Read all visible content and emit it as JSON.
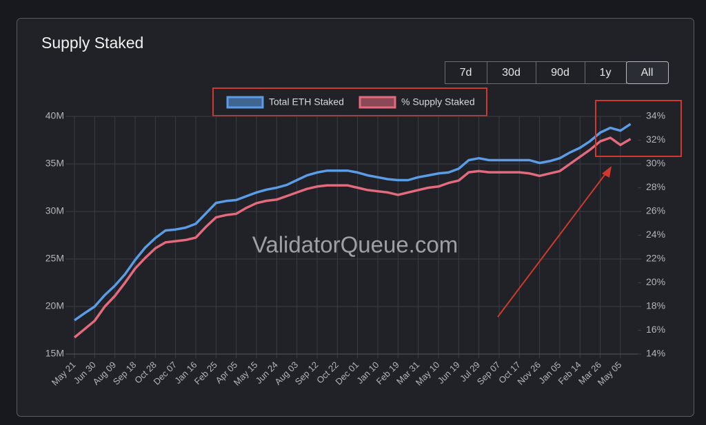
{
  "chart_data": {
    "type": "line",
    "title": "Supply Staked",
    "watermark": "ValidatorQueue.com",
    "categories": [
      "May 21",
      null,
      "Jun 30",
      null,
      "Aug 09",
      null,
      "Sep 18",
      null,
      "Oct 28",
      null,
      "Dec 07",
      null,
      "Jan 16",
      null,
      "Feb 25",
      null,
      "Apr 05",
      null,
      "May 15",
      null,
      "Jun 24",
      null,
      "Aug 03",
      null,
      "Sep 12",
      null,
      "Oct 22",
      null,
      "Dec 01",
      null,
      "Jan 10",
      null,
      "Feb 19",
      null,
      "Mar 31",
      null,
      "May 10",
      null,
      "Jun 19",
      null,
      "Jul 29",
      null,
      "Sep 07",
      null,
      "Oct 17",
      null,
      "Nov 26",
      null,
      "Jan 05",
      null,
      "Feb 14",
      null,
      "Mar 26",
      null,
      "May 05",
      null
    ],
    "series": [
      {
        "name": "Total ETH Staked",
        "color": "#5b9ce6",
        "axis": "y",
        "values": [
          18550000,
          19300000,
          20000000,
          21200000,
          22200000,
          23400000,
          24900000,
          26200000,
          27200000,
          28000000,
          28100000,
          28300000,
          28700000,
          29800000,
          30900000,
          31100000,
          31200000,
          31600000,
          32000000,
          32300000,
          32500000,
          32800000,
          33300000,
          33800000,
          34100000,
          34300000,
          34300000,
          34300000,
          34100000,
          33800000,
          33600000,
          33400000,
          33300000,
          33300000,
          33600000,
          33800000,
          34000000,
          34100000,
          34500000,
          35400000,
          35600000,
          35400000,
          35400000,
          35400000,
          35400000,
          35400000,
          35100000,
          35300000,
          35600000,
          36200000,
          36700000,
          37400000,
          38300000,
          38800000,
          38500000,
          39200000
        ]
      },
      {
        "name": "% Supply Staked",
        "color": "#e46a7e",
        "axis": "y2",
        "values": [
          15.4,
          16.1,
          16.8,
          18.0,
          18.9,
          20.0,
          21.2,
          22.1,
          22.9,
          23.4,
          23.5,
          23.6,
          23.8,
          24.7,
          25.5,
          25.7,
          25.8,
          26.3,
          26.7,
          26.9,
          27.0,
          27.3,
          27.6,
          27.9,
          28.1,
          28.2,
          28.2,
          28.2,
          28.0,
          27.8,
          27.7,
          27.6,
          27.4,
          27.6,
          27.8,
          28.0,
          28.1,
          28.4,
          28.6,
          29.3,
          29.4,
          29.3,
          29.3,
          29.3,
          29.3,
          29.2,
          29.0,
          29.2,
          29.4,
          30.0,
          30.6,
          31.2,
          31.9,
          32.2,
          31.6,
          32.1
        ]
      }
    ],
    "ylim": [
      15000000,
      40000000
    ],
    "yticks": [
      {
        "value": 15000000,
        "label": "15M"
      },
      {
        "value": 20000000,
        "label": "20M"
      },
      {
        "value": 25000000,
        "label": "25M"
      },
      {
        "value": 30000000,
        "label": "30M"
      },
      {
        "value": 35000000,
        "label": "35M"
      },
      {
        "value": 40000000,
        "label": "40M"
      }
    ],
    "y2lim": [
      14,
      34
    ],
    "y2ticks": [
      {
        "value": 14,
        "label": "14%"
      },
      {
        "value": 16,
        "label": "16%"
      },
      {
        "value": 18,
        "label": "18%"
      },
      {
        "value": 20,
        "label": "20%"
      },
      {
        "value": 22,
        "label": "22%"
      },
      {
        "value": 24,
        "label": "24%"
      },
      {
        "value": 26,
        "label": "26%"
      },
      {
        "value": 28,
        "label": "28%"
      },
      {
        "value": 30,
        "label": "30%"
      },
      {
        "value": 32,
        "label": "32%"
      },
      {
        "value": 34,
        "label": "34%"
      }
    ],
    "grid": true
  },
  "range_buttons": [
    "7d",
    "30d",
    "90d",
    "1y",
    "All"
  ]
}
